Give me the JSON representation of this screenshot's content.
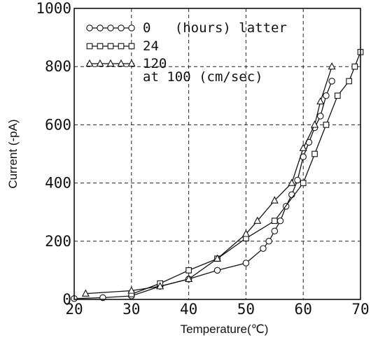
{
  "chart_data": {
    "type": "line",
    "title": "",
    "xlabel": "Temperature(℃)",
    "ylabel": "Current (-pA)",
    "xlim": [
      20,
      70
    ],
    "ylim": [
      0,
      1000
    ],
    "xticks": [
      "20",
      "30",
      "40",
      "50",
      "60",
      "70"
    ],
    "yticks": [
      "0",
      "200",
      "400",
      "600",
      "800",
      "1000"
    ],
    "grid": true,
    "legend_position": "top-left",
    "legend_note": "at 100 (cm/sec)",
    "series": [
      {
        "name": "0   (hours) latter",
        "marker": "circle",
        "x": [
          20,
          25,
          30,
          35,
          40,
          45,
          50,
          53,
          54,
          55,
          56,
          57,
          58,
          59,
          60,
          61,
          62,
          63,
          64,
          65
        ],
        "y": [
          3,
          6,
          12,
          45,
          70,
          100,
          125,
          175,
          200,
          235,
          270,
          320,
          360,
          410,
          490,
          540,
          590,
          630,
          700,
          750
        ]
      },
      {
        "name": "24",
        "marker": "square",
        "x": [
          30,
          35,
          40,
          45,
          50,
          55,
          60,
          62,
          64,
          66,
          68,
          69,
          70
        ],
        "y": [
          18,
          55,
          100,
          140,
          210,
          270,
          400,
          500,
          600,
          700,
          750,
          800,
          850
        ]
      },
      {
        "name": "120",
        "marker": "triangle",
        "x": [
          22,
          30,
          35,
          40,
          45,
          50,
          52,
          55,
          58,
          60,
          62,
          63,
          65
        ],
        "y": [
          20,
          30,
          45,
          70,
          140,
          225,
          270,
          340,
          400,
          520,
          600,
          680,
          800
        ]
      }
    ]
  }
}
